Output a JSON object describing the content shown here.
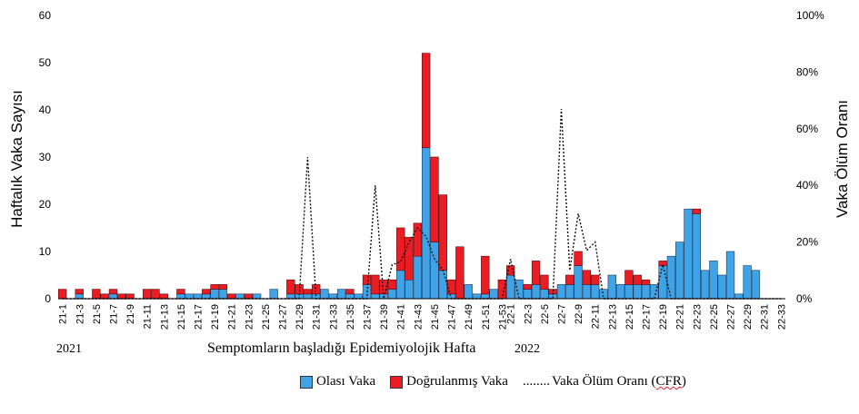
{
  "chart_data": {
    "type": "bar",
    "stacked": true,
    "xlabel": "Semptomların başladığı Epidemiyolojik Hafta",
    "ylabel_left": "Haftalık Vaka Sayısı",
    "ylabel_right": "Vaka Ölüm Oranı",
    "ylim_left": [
      0,
      60
    ],
    "yticks_left": [
      "0",
      "10",
      "20",
      "30",
      "40",
      "50",
      "60"
    ],
    "ylim_right": [
      0,
      1
    ],
    "yticks_right": [
      "0%",
      "20%",
      "40%",
      "60%",
      "80%",
      "100%"
    ],
    "year_labels": [
      "2021",
      "2022"
    ],
    "categories": [
      "21-1",
      "21-2",
      "21-3",
      "21-4",
      "21-5",
      "21-6",
      "21-7",
      "21-8",
      "21-9",
      "21-10",
      "21-11",
      "21-12",
      "21-13",
      "21-14",
      "21-15",
      "21-16",
      "21-17",
      "21-18",
      "21-19",
      "21-20",
      "21-21",
      "21-22",
      "21-23",
      "21-24",
      "21-25",
      "21-26",
      "21-27",
      "21-28",
      "21-29",
      "21-30",
      "21-31",
      "21-32",
      "21-33",
      "21-34",
      "21-35",
      "21-36",
      "21-37",
      "21-38",
      "21-39",
      "21-40",
      "21-41",
      "21-42",
      "21-43",
      "21-44",
      "21-45",
      "21-46",
      "21-47",
      "21-48",
      "21-49",
      "21-50",
      "21-51",
      "21-52",
      "21-53",
      "22-1",
      "22-2",
      "22-3",
      "22-4",
      "22-5",
      "22-6",
      "22-7",
      "22-8",
      "22-9",
      "22-10",
      "22-11",
      "22-12",
      "22-13",
      "22-14",
      "22-15",
      "22-16",
      "22-17",
      "22-18",
      "22-19",
      "22-20",
      "22-21",
      "22-22",
      "22-23",
      "22-24",
      "22-25",
      "22-26",
      "22-27",
      "22-28",
      "22-29",
      "22-30",
      "22-31",
      "22-32",
      "22-33"
    ],
    "tick_labels": [
      "21-1",
      "21-3",
      "21-5",
      "21-7",
      "21-9",
      "21-11",
      "21-13",
      "21-15",
      "21-17",
      "21-19",
      "21-21",
      "21-23",
      "21-25",
      "21-27",
      "21-29",
      "21-31",
      "21-33",
      "21-35",
      "21-37",
      "21-39",
      "21-41",
      "21-43",
      "21-45",
      "21-47",
      "21-49",
      "21-51",
      "21-53",
      "22-1",
      "22-3",
      "22-5",
      "22-7",
      "22-9",
      "22-11",
      "22-13",
      "22-15",
      "22-17",
      "22-19",
      "22-21",
      "22-23",
      "22-25",
      "22-27",
      "22-29",
      "22-31",
      "22-33"
    ],
    "series": [
      {
        "name": "Olası Vaka",
        "color": "#3fa3e6",
        "values": [
          0,
          0,
          1,
          0,
          0,
          0,
          1,
          0,
          0,
          0,
          0,
          0,
          0,
          0,
          1,
          1,
          1,
          1,
          2,
          2,
          0,
          1,
          0,
          1,
          0,
          2,
          0,
          1,
          1,
          1,
          1,
          2,
          1,
          2,
          1,
          1,
          3,
          1,
          1,
          2,
          6,
          4,
          9,
          32,
          12,
          6,
          1,
          0,
          3,
          1,
          1,
          2,
          0,
          5,
          4,
          2,
          3,
          2,
          1,
          3,
          3,
          7,
          3,
          3,
          2,
          5,
          3,
          3,
          3,
          3,
          3,
          7,
          9,
          12,
          19,
          18,
          6,
          8,
          5,
          10,
          1,
          7,
          6,
          0,
          0,
          0
        ]
      },
      {
        "name": "Doğrulanmış Vaka",
        "color": "#ea1c24",
        "values": [
          2,
          0,
          1,
          0,
          2,
          1,
          1,
          1,
          1,
          0,
          2,
          2,
          1,
          0,
          1,
          0,
          0,
          1,
          1,
          1,
          1,
          0,
          1,
          0,
          0,
          0,
          0,
          3,
          2,
          1,
          2,
          0,
          0,
          0,
          1,
          0,
          2,
          4,
          3,
          2,
          9,
          9,
          7,
          20,
          18,
          16,
          3,
          11,
          0,
          0,
          8,
          0,
          4,
          2,
          0,
          1,
          5,
          3,
          1,
          0,
          2,
          3,
          3,
          2,
          0,
          0,
          0,
          3,
          2,
          1,
          0,
          1,
          0,
          0,
          0,
          1,
          0,
          0,
          0,
          0,
          0,
          0,
          0,
          0,
          0,
          0
        ]
      }
    ],
    "cfr_series": {
      "name": "........Vaka Ölüm Oranı (CFR)",
      "style": "dotted",
      "values": [
        0,
        0,
        0,
        0,
        0,
        0,
        0,
        0,
        0,
        0,
        0,
        0,
        0,
        0,
        0,
        0,
        0,
        0,
        0,
        0,
        0,
        0,
        0,
        0,
        0,
        0,
        0,
        0,
        0,
        0.5,
        0,
        0,
        0,
        0,
        0,
        0,
        0,
        0.4,
        0,
        0.12,
        0.13,
        0.2,
        0.25,
        0.22,
        0.14,
        0.1,
        0,
        0,
        0,
        0,
        0,
        0,
        0,
        0.14,
        0,
        0,
        0,
        0,
        0,
        0.67,
        0.1,
        0.3,
        0.17,
        0.2,
        0,
        0,
        0,
        0,
        0,
        0,
        0,
        0.12,
        0,
        0,
        0,
        0,
        0,
        0,
        0,
        0,
        0,
        0,
        0,
        0,
        0,
        0
      ]
    }
  },
  "legend": {
    "olasi": "Olası Vaka",
    "dogrulanmis": "Doğrulanmış Vaka",
    "cfr_dots": "........",
    "cfr_text_a": "Vaka Ölüm Oranı (",
    "cfr_text_b": "CFR",
    "cfr_text_c": ")"
  }
}
